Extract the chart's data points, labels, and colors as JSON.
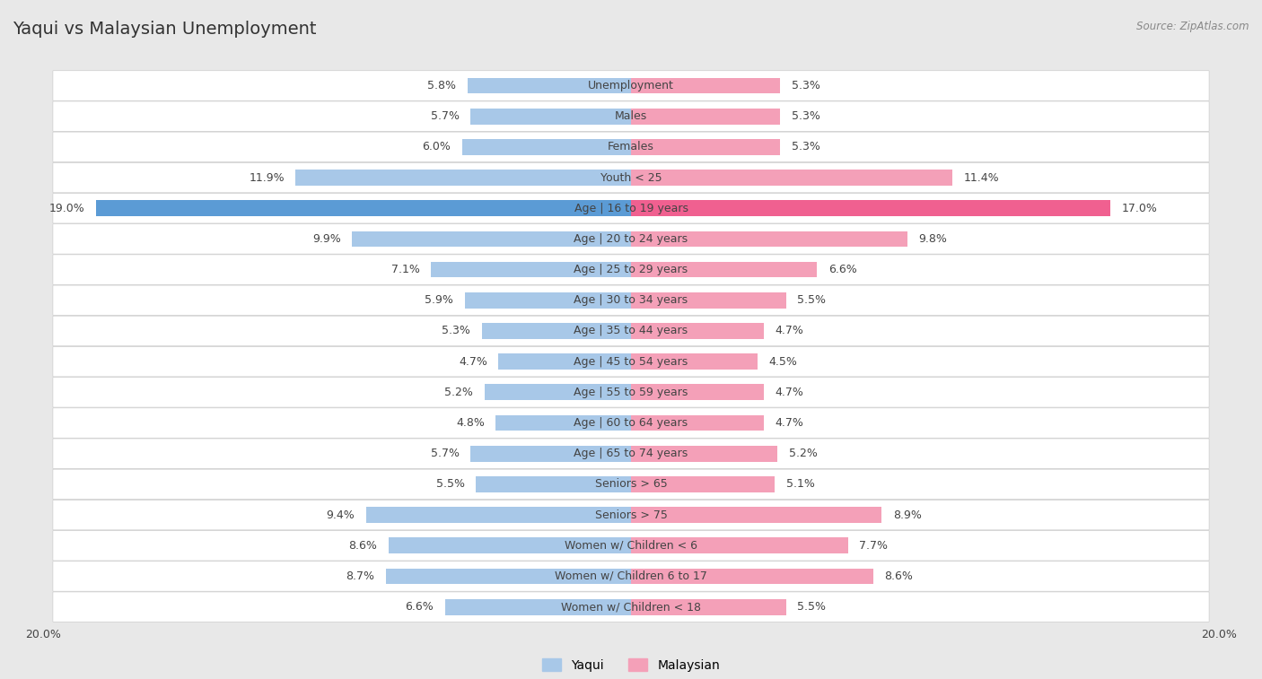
{
  "title": "Yaqui vs Malaysian Unemployment",
  "source": "Source: ZipAtlas.com",
  "categories": [
    "Unemployment",
    "Males",
    "Females",
    "Youth < 25",
    "Age | 16 to 19 years",
    "Age | 20 to 24 years",
    "Age | 25 to 29 years",
    "Age | 30 to 34 years",
    "Age | 35 to 44 years",
    "Age | 45 to 54 years",
    "Age | 55 to 59 years",
    "Age | 60 to 64 years",
    "Age | 65 to 74 years",
    "Seniors > 65",
    "Seniors > 75",
    "Women w/ Children < 6",
    "Women w/ Children 6 to 17",
    "Women w/ Children < 18"
  ],
  "yaqui_values": [
    5.8,
    5.7,
    6.0,
    11.9,
    19.0,
    9.9,
    7.1,
    5.9,
    5.3,
    4.7,
    5.2,
    4.8,
    5.7,
    5.5,
    9.4,
    8.6,
    8.7,
    6.6
  ],
  "malaysian_values": [
    5.3,
    5.3,
    5.3,
    11.4,
    17.0,
    9.8,
    6.6,
    5.5,
    4.7,
    4.5,
    4.7,
    4.7,
    5.2,
    5.1,
    8.9,
    7.7,
    8.6,
    5.5
  ],
  "yaqui_color": "#a8c8e8",
  "malaysian_color": "#f4a0b8",
  "highlight_yaqui_color": "#5b9bd5",
  "highlight_malaysian_color": "#f06090",
  "max_val": 20.0,
  "bg_color": "#e8e8e8",
  "row_bg": "#f5f5f5",
  "label_fontsize": 9,
  "category_fontsize": 9,
  "title_fontsize": 14,
  "legend_fontsize": 10
}
